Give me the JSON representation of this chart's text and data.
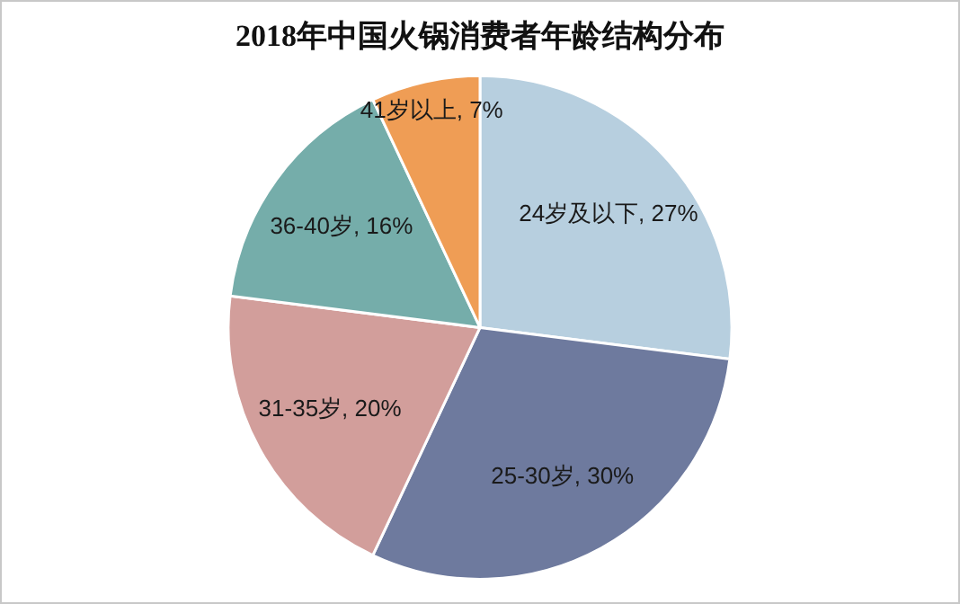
{
  "chart_data": {
    "type": "pie",
    "title": "2018年中国火锅消费者年龄结构分布",
    "categories": [
      "24岁及以下",
      "25-30岁",
      "31-35岁",
      "36-40岁",
      "41岁以上"
    ],
    "values": [
      27,
      30,
      20,
      16,
      7
    ],
    "value_labels": [
      "27%",
      "30%",
      "20%",
      "16%",
      "7%"
    ],
    "colors": [
      "#b7cfdf",
      "#6e7a9e",
      "#d29e9b",
      "#75adaa",
      "#ef9d55"
    ],
    "legend": false
  }
}
